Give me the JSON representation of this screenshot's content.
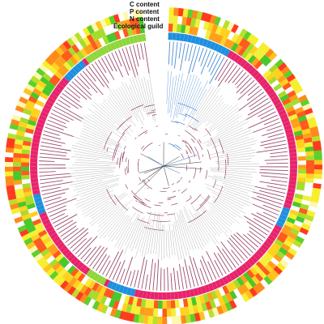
{
  "legend": {
    "labels": [
      "C content",
      "P content",
      "N content",
      "Ecological guild"
    ]
  },
  "rings": {
    "c_colors": [
      "#ff3b1f",
      "#ff8a1c",
      "#ffc21f",
      "#f7ee2e",
      "#b8e02a",
      "#5fcf2b",
      "#fff7b0",
      "#ffffff"
    ],
    "np_colors": [
      "#ff5a1f",
      "#ffa01c",
      "#ffd21f",
      "#f3f03a",
      "#a6dc2d",
      "#48c82b",
      "#ffffff"
    ],
    "guild_colors": {
      "saprotroph": "#e8236b",
      "symbiotroph": "#1e8fe0",
      "pathotroph": "#8fd63a"
    }
  },
  "tree": {
    "clade_colors": {
      "main": "#8a2f57",
      "outgroup": "#2e78c7"
    }
  }
}
